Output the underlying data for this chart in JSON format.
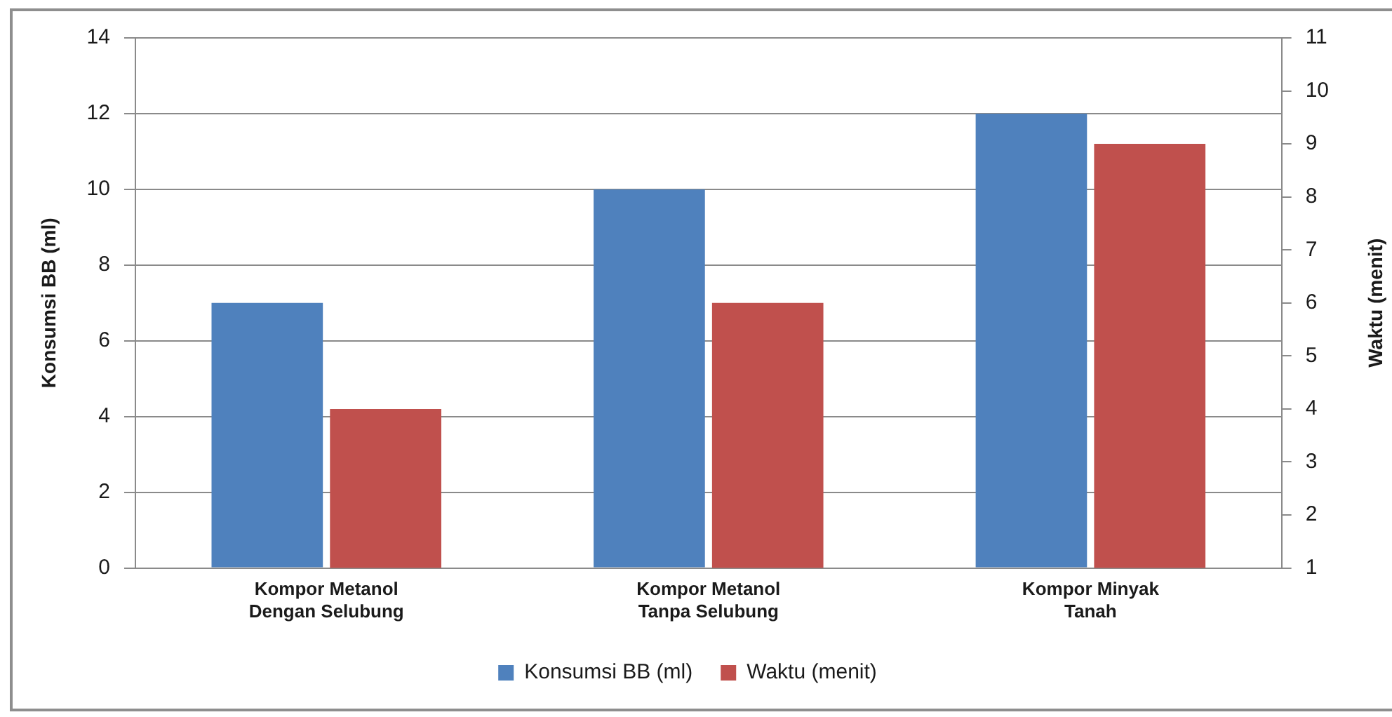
{
  "chart_data": {
    "type": "bar",
    "categories": [
      "Kompor Metanol Dengan Selubung",
      "Kompor Metanol Tanpa Selubung",
      "Kompor Minyak Tanah"
    ],
    "series": [
      {
        "name": "Konsumsi BB (ml)",
        "color": "#4f81bd",
        "values": [
          7,
          10,
          12
        ]
      },
      {
        "name": "Waktu (menit)",
        "color": "#c0504d",
        "values": [
          4,
          6,
          9
        ],
        "axis": "y2"
      }
    ],
    "ylabel": "Konsumsi BB (ml)",
    "y2label": "Waktu (menit)",
    "ylim": [
      0,
      14
    ],
    "yticks": [
      0,
      2,
      4,
      6,
      8,
      10,
      12,
      14
    ],
    "y2lim": [
      1,
      11
    ],
    "y2ticks": [
      1,
      2,
      3,
      4,
      5,
      6,
      7,
      8,
      9,
      10,
      11
    ],
    "grid": "y",
    "legend": "bottom"
  }
}
